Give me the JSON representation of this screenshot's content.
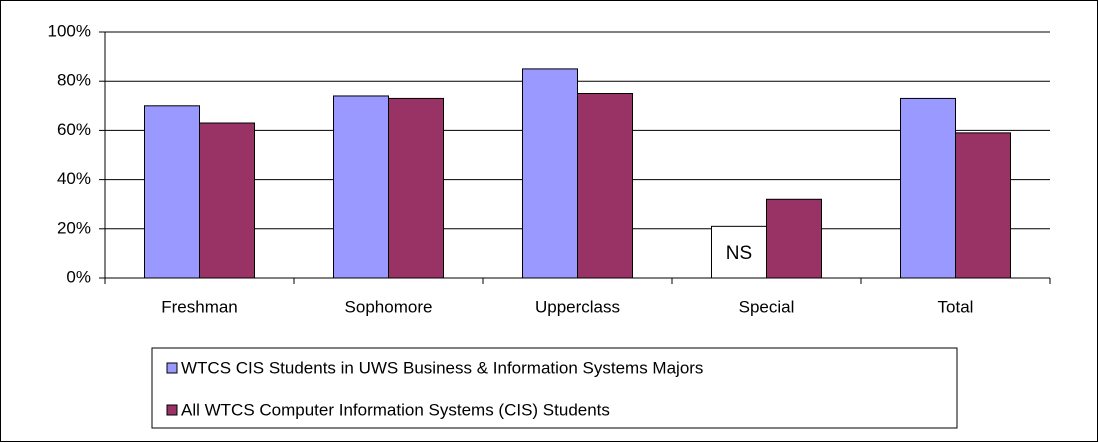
{
  "chart_data": {
    "type": "bar",
    "categories": [
      "Freshman",
      "Sophomore",
      "Upperclass",
      "Special",
      "Total"
    ],
    "series": [
      {
        "name": "WTCS CIS Students in UWS Business & Information Systems Majors",
        "color": "#9999ff",
        "values": [
          70,
          74,
          85,
          21,
          73
        ]
      },
      {
        "name": "All WTCS Computer Information Systems (CIS) Students",
        "color": "#993366",
        "values": [
          63,
          73,
          75,
          32,
          59
        ]
      }
    ],
    "ylim": [
      0,
      100
    ],
    "yticks": [
      {
        "value": 0,
        "label": "0%"
      },
      {
        "value": 20,
        "label": "20%"
      },
      {
        "value": 40,
        "label": "40%"
      },
      {
        "value": 60,
        "label": "60%"
      },
      {
        "value": 80,
        "label": "80%"
      },
      {
        "value": 100,
        "label": "100%"
      }
    ],
    "grid": true,
    "legend": "bottom",
    "annotations": [
      {
        "text": "NS",
        "category": "Special",
        "series": 0,
        "color": "#ffffff"
      }
    ]
  }
}
